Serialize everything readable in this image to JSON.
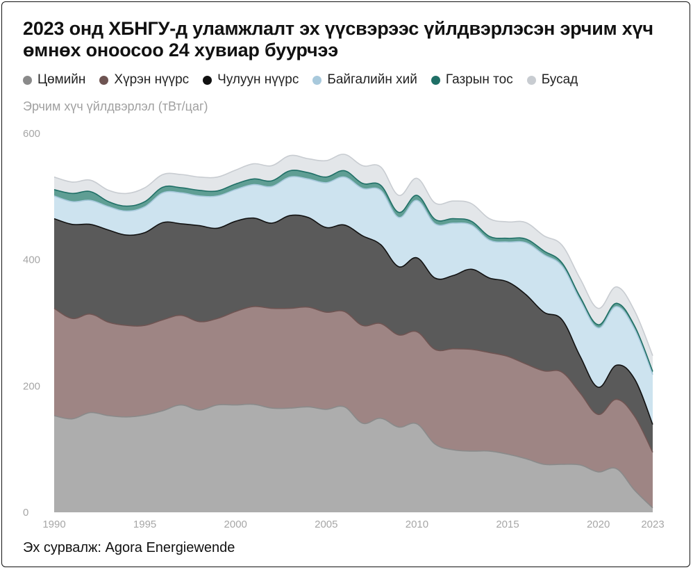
{
  "title": "2023 онд ХБНГУ-д уламжлалт эх үүсвэрээс үйлдвэрлэсэн эрчим хүч өмнөх оноосоо 24 хувиар буурчээ",
  "source": "Эх сурвалж: Agora Energiewende",
  "chart_data": {
    "type": "area",
    "stacked": true,
    "title": "2023 онд ХБНГУ-д уламжлалт эх үүсвэрээс үйлдвэрлэсэн эрчим хүч өмнөх оноосоо 24 хувиар буурчээ",
    "ylabel": "Эрчим хүч үйлдвэрлэл (тВт/цаг)",
    "xlabel": "",
    "ylim": [
      0,
      600
    ],
    "yticks": [
      0,
      200,
      400,
      600
    ],
    "xticks": [
      1990,
      1995,
      2000,
      2005,
      2010,
      2015,
      2020,
      2023
    ],
    "x": [
      1990,
      1991,
      1992,
      1993,
      1994,
      1995,
      1996,
      1997,
      1998,
      1999,
      2000,
      2001,
      2002,
      2003,
      2004,
      2005,
      2006,
      2007,
      2008,
      2009,
      2010,
      2011,
      2012,
      2013,
      2014,
      2015,
      2016,
      2017,
      2018,
      2019,
      2020,
      2021,
      2022,
      2023
    ],
    "series": [
      {
        "name": "Цөмийн",
        "color": "#8a8a8a",
        "fill": "#adadad",
        "values": [
          153,
          148,
          158,
          153,
          151,
          154,
          161,
          170,
          162,
          170,
          170,
          171,
          165,
          165,
          167,
          163,
          167,
          141,
          149,
          135,
          140,
          108,
          99,
          97,
          97,
          92,
          85,
          76,
          76,
          75,
          64,
          69,
          35,
          7
        ]
      },
      {
        "name": "Хүрэн нүүрс",
        "color": "#6e5452",
        "fill": "#9e8584",
        "values": [
          170,
          159,
          156,
          148,
          145,
          142,
          144,
          142,
          140,
          137,
          148,
          155,
          158,
          158,
          158,
          154,
          151,
          155,
          150,
          146,
          146,
          150,
          160,
          161,
          156,
          155,
          150,
          148,
          146,
          114,
          91,
          110,
          117,
          88
        ]
      },
      {
        "name": "Чулуун нүүрс",
        "color": "#111111",
        "fill": "#5a5a5a",
        "values": [
          142,
          149,
          142,
          146,
          143,
          147,
          154,
          145,
          152,
          143,
          143,
          140,
          135,
          147,
          142,
          134,
          137,
          142,
          125,
          108,
          117,
          113,
          116,
          127,
          118,
          118,
          110,
          93,
          83,
          58,
          43,
          54,
          59,
          44
        ]
      },
      {
        "name": "Байгалийн хий",
        "color": "#a8c9dc",
        "fill": "#cde3ef",
        "values": [
          36,
          36,
          38,
          37,
          38,
          41,
          47,
          49,
          47,
          51,
          50,
          53,
          58,
          61,
          61,
          71,
          76,
          75,
          86,
          78,
          91,
          86,
          83,
          70,
          60,
          63,
          82,
          91,
          85,
          89,
          94,
          93,
          79,
          79
        ]
      },
      {
        "name": "Газрын тос",
        "color": "#1f6f66",
        "fill": "#5f9e94",
        "values": [
          10,
          13,
          14,
          8,
          8,
          8,
          9,
          8,
          9,
          8,
          9,
          9,
          9,
          10,
          10,
          9,
          10,
          8,
          8,
          8,
          8,
          7,
          7,
          6,
          6,
          6,
          6,
          6,
          5,
          5,
          5,
          5,
          5,
          5
        ]
      },
      {
        "name": "Бусад",
        "color": "#c8ccd1",
        "fill": "#e3e6e9",
        "values": [
          20,
          18,
          18,
          18,
          20,
          22,
          20,
          21,
          21,
          22,
          22,
          24,
          24,
          24,
          22,
          26,
          26,
          28,
          29,
          27,
          27,
          26,
          28,
          28,
          28,
          26,
          26,
          24,
          28,
          29,
          26,
          26,
          24,
          25
        ]
      }
    ]
  }
}
